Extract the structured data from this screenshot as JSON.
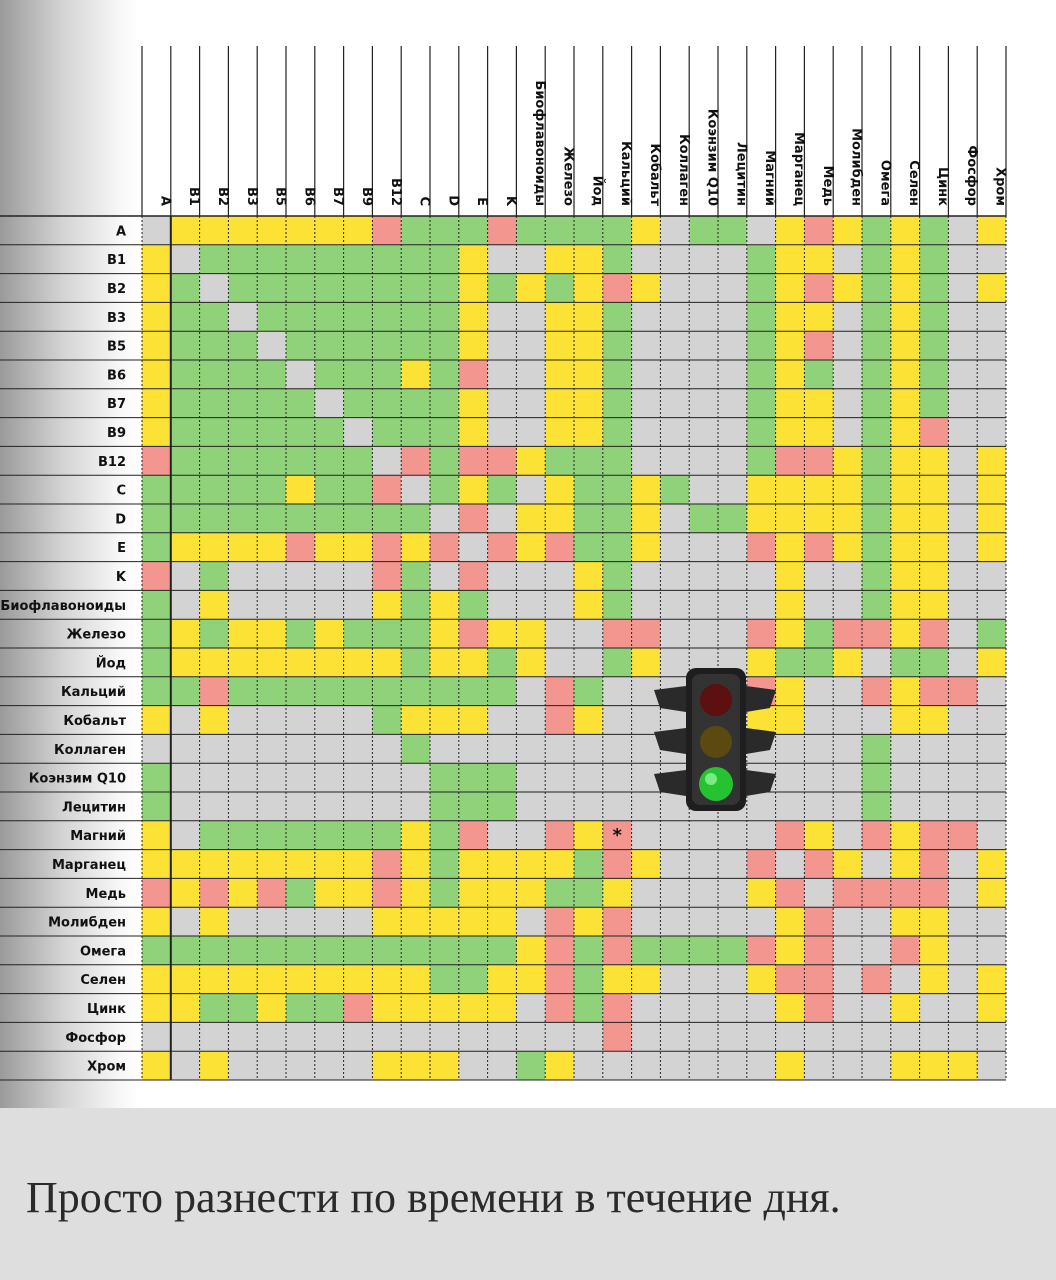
{
  "caption": "Просто разнести по времени в течение дня.",
  "colors": {
    "G": "#8fd27a",
    "Y": "#fbe235",
    "R": "#f39690",
    "N": "#d3d3d3",
    "grid": "#222222",
    "header_text": "#111111"
  },
  "legend_icon": "traffic-light-icon",
  "chart_data": {
    "type": "heatmap",
    "title": "",
    "row_labels": [
      "A",
      "B1",
      "B2",
      "B3",
      "B5",
      "B6",
      "B7",
      "B9",
      "B12",
      "C",
      "D",
      "E",
      "K",
      "Биофлавоноиды",
      "Железо",
      "Йод",
      "Кальций",
      "Кобальт",
      "Коллаген",
      "Коэнзим Q10",
      "Лецитин",
      "Магний",
      "Марганец",
      "Медь",
      "Молибден",
      "Омега",
      "Селен",
      "Цинк",
      "Фосфор",
      "Хром"
    ],
    "col_labels": [
      "A",
      "B1",
      "B2",
      "B3",
      "B5",
      "B6",
      "B7",
      "B9",
      "B12",
      "C",
      "D",
      "E",
      "K",
      "Биофлавоноиды",
      "Железо",
      "Йод",
      "Кальций",
      "Кобальт",
      "Коллаген",
      "Коэнзим Q10",
      "Лецитин",
      "Магний",
      "Марганец",
      "Медь",
      "Молибден",
      "Омега",
      "Селен",
      "Цинк",
      "Фосфор",
      "Хром"
    ],
    "legend": {
      "G": "green",
      "Y": "yellow",
      "R": "red",
      "N": "grey"
    },
    "cells": [
      "NYYYYYYYRGGGRGGGGYNGGNYRYGYGNY",
      "YNGGGGGGGGGYNNYYGNNNNGYYNGYGNN",
      "YGNGGGGGGGGYGYGYRYNNNGYRYGYGNY",
      "YGGNGGGGGGGYNNYYGNNNNGYYNGYGNN",
      "YGGGNGGGGGGYNNYYGNNNNGYRNGYGNN",
      "YGGGGNGGGYGRNNYYGNNNNGYGNGYGNN",
      "YGGGGGNGGGGYNNYYGNNNNGYYNGYGNN",
      "YGGGGGGNGGGYNNYYGNNNNGYYNGYRNN",
      "RGGGGGGGNRGRRYGGGNNNNGRRYGYYNY",
      "GGGGGYGGRNGYGNYGGYGNNYYYYGYYNY",
      "GGGGGGGGGGNRNYYGGYNGGYYYYGYYNY",
      "GYYYYRYYRYRNRYRGGYNNNRYRYGYYNY",
      "RNGNNNNNRGNRNNNYGNNNNNYNNGYYNN",
      "GNYNNNNNYGYGNNNYGNNNNNYNNGYYNN",
      "GYGYYGYGGGYRYYNNRRNNNRYGRRYRNG",
      "GYYYYYYYYGYYGYNNGYNNNYGGYNGGNY",
      "GGRGGGGGGGGGGNRGNNNNNRYNNRYRRN",
      "YNYNNNNNGYYYNNRYNNNNNYYNNNYYNN",
      "NNNNNNNNNGNNNNNNNNNNNNNNNGNNNN",
      "GNNNNNNNNNGGGNNNNNNNNNNNNGNNNN",
      "GNNNNNNNNNGGGNNNNNNNNNNNNGNNNN",
      "YNGGGGGGGYGRNNRYRNNNNNRYNRYRRN",
      "YYYYYYYYRYGYYYYGRYNNNRNRYNYRNY",
      "RYRYRGYYRYGYYYGGYNNNNYRNRRRRNY",
      "YNYNNNNNYYYYYNRYRNNNNNYRNNYYNN",
      "GGGGGGGGGGGGGYRGRGGGGRYRNNRYNN",
      "YYYYYYYYYYGGYYRGYYNNNYRRNRNYNY",
      "YYGGYGGRYYYYYNRGRNNNNNYRNNYNNY",
      "NNNNNNNNNNNNNNNNRNNNNNNNNNNNNN",
      "YNYNNNNNYYYNNGYNNNNNNNYNNNYYYN"
    ],
    "annotations": [
      {
        "row": "Магний",
        "col": "Кальций",
        "text": "*"
      }
    ]
  }
}
